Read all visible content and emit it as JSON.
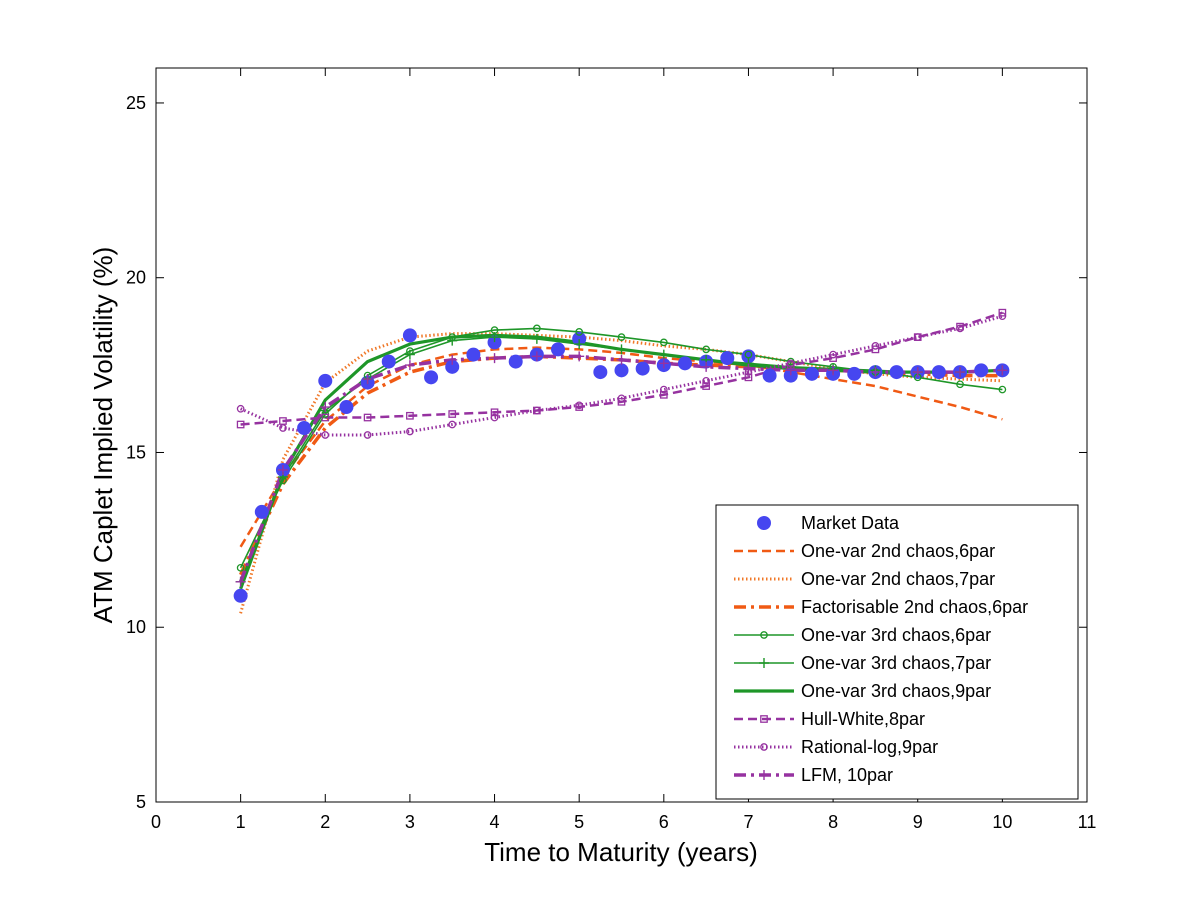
{
  "chart_data": {
    "type": "line",
    "title": "",
    "xlabel": "Time to Maturity (years)",
    "ylabel": "ATM Caplet Implied Volatility (%)",
    "xlim": [
      0,
      11
    ],
    "ylim": [
      5,
      26
    ],
    "xticks": [
      0,
      1,
      2,
      3,
      4,
      5,
      6,
      7,
      8,
      9,
      10,
      11
    ],
    "yticks": [
      5,
      10,
      15,
      20,
      25
    ],
    "grid": false,
    "legend_position": "lower-right",
    "series": [
      {
        "name": "Market Data",
        "color": "#4646f0",
        "style": "markers",
        "marker": "filled-circle",
        "x": [
          1,
          1.25,
          1.5,
          1.75,
          2,
          2.25,
          2.5,
          2.75,
          3,
          3.25,
          3.5,
          3.75,
          4,
          4.25,
          4.5,
          4.75,
          5,
          5.25,
          5.5,
          5.75,
          6,
          6.25,
          6.5,
          6.75,
          7,
          7.25,
          7.5,
          7.75,
          8,
          8.25,
          8.5,
          8.75,
          9,
          9.25,
          9.5,
          9.75,
          10
        ],
        "y": [
          10.9,
          13.3,
          14.5,
          15.7,
          17.05,
          16.3,
          17.0,
          17.6,
          18.35,
          17.15,
          17.45,
          17.8,
          18.15,
          17.6,
          17.8,
          17.95,
          18.25,
          17.3,
          17.35,
          17.4,
          17.5,
          17.55,
          17.6,
          17.7,
          17.75,
          17.2,
          17.2,
          17.25,
          17.25,
          17.25,
          17.3,
          17.3,
          17.3,
          17.3,
          17.3,
          17.35,
          17.35
        ]
      },
      {
        "name": "One-var 2nd chaos,6par",
        "color": "#f05a14",
        "style": "dashed",
        "x": [
          1,
          1.5,
          2,
          2.5,
          3,
          3.5,
          4,
          4.5,
          5,
          5.5,
          6,
          6.5,
          7,
          7.5,
          8,
          8.5,
          9,
          9.5,
          10
        ],
        "y": [
          12.3,
          14.3,
          15.9,
          16.9,
          17.5,
          17.8,
          17.95,
          18.0,
          17.95,
          17.85,
          17.7,
          17.6,
          17.5,
          17.3,
          17.1,
          16.9,
          16.6,
          16.3,
          15.95
        ]
      },
      {
        "name": "One-var 2nd chaos,7par",
        "color": "#f07828",
        "style": "dotted",
        "x": [
          1,
          1.5,
          2,
          2.5,
          3,
          3.5,
          4,
          4.5,
          5,
          5.5,
          6,
          6.5,
          7,
          7.5,
          8,
          8.5,
          9,
          9.5,
          10
        ],
        "y": [
          10.4,
          14.8,
          17.0,
          17.9,
          18.3,
          18.4,
          18.4,
          18.35,
          18.3,
          18.2,
          18.05,
          17.95,
          17.8,
          17.6,
          17.4,
          17.25,
          17.15,
          17.1,
          17.05
        ]
      },
      {
        "name": "Factorisable 2nd chaos,6par",
        "color": "#f05a14",
        "style": "dashdot",
        "x": [
          1,
          1.5,
          2,
          2.5,
          3,
          3.5,
          4,
          4.5,
          5,
          5.5,
          6,
          6.5,
          7,
          7.5,
          8,
          8.5,
          9,
          9.5,
          10
        ],
        "y": [
          11.5,
          14.1,
          15.7,
          16.7,
          17.3,
          17.6,
          17.7,
          17.75,
          17.7,
          17.65,
          17.55,
          17.5,
          17.45,
          17.4,
          17.35,
          17.3,
          17.25,
          17.2,
          17.2
        ]
      },
      {
        "name": "One-var 3rd chaos,6par",
        "color": "#1e9628",
        "style": "solid",
        "marker": "open-circle",
        "x": [
          1,
          1.5,
          2,
          2.5,
          3,
          3.5,
          4,
          4.5,
          5,
          5.5,
          6,
          6.5,
          7,
          7.5,
          8,
          8.5,
          9,
          9.5,
          10
        ],
        "y": [
          11.7,
          14.2,
          16.1,
          17.2,
          17.9,
          18.3,
          18.5,
          18.55,
          18.45,
          18.3,
          18.15,
          17.95,
          17.8,
          17.6,
          17.45,
          17.3,
          17.15,
          16.95,
          16.8
        ]
      },
      {
        "name": "One-var 3rd chaos,7par",
        "color": "#1e9628",
        "style": "solid",
        "marker": "plus",
        "x": [
          1,
          1.5,
          2,
          2.5,
          3,
          3.5,
          4,
          4.5,
          5,
          5.5,
          6,
          6.5,
          7,
          7.5,
          8,
          8.5,
          9,
          9.5,
          10
        ],
        "y": [
          11.3,
          14.3,
          16.2,
          17.1,
          17.8,
          18.2,
          18.3,
          18.25,
          18.1,
          17.95,
          17.8,
          17.65,
          17.55,
          17.45,
          17.4,
          17.35,
          17.3,
          17.3,
          17.35
        ]
      },
      {
        "name": "One-var 3rd chaos,9par",
        "color": "#1e9628",
        "style": "solid-thick",
        "x": [
          1,
          1.5,
          2,
          2.5,
          3,
          3.5,
          4,
          4.5,
          5,
          5.5,
          6,
          6.5,
          7,
          7.5,
          8,
          8.5,
          9,
          9.5,
          10
        ],
        "y": [
          11.1,
          14.4,
          16.5,
          17.6,
          18.1,
          18.3,
          18.35,
          18.3,
          18.15,
          17.95,
          17.8,
          17.65,
          17.5,
          17.4,
          17.35,
          17.3,
          17.3,
          17.3,
          17.35
        ]
      },
      {
        "name": "Hull-White,8par",
        "color": "#9632a0",
        "style": "dashed",
        "marker": "open-square",
        "x": [
          1,
          1.5,
          2,
          2.5,
          3,
          3.5,
          4,
          4.5,
          5,
          5.5,
          6,
          6.5,
          7,
          7.5,
          8,
          8.5,
          9,
          9.5,
          10
        ],
        "y": [
          15.8,
          15.9,
          16.0,
          16.0,
          16.05,
          16.1,
          16.15,
          16.2,
          16.3,
          16.45,
          16.65,
          16.9,
          17.15,
          17.5,
          17.7,
          17.95,
          18.3,
          18.6,
          19.0
        ]
      },
      {
        "name": "Rational-log,9par",
        "color": "#9632a0",
        "style": "dotted",
        "marker": "open-circle",
        "x": [
          1,
          1.5,
          2,
          2.5,
          3,
          3.5,
          4,
          4.5,
          5,
          5.5,
          6,
          6.5,
          7,
          7.5,
          8,
          8.5,
          9,
          9.5,
          10
        ],
        "y": [
          16.25,
          15.7,
          15.5,
          15.5,
          15.6,
          15.8,
          16.0,
          16.2,
          16.35,
          16.55,
          16.8,
          17.05,
          17.3,
          17.55,
          17.8,
          18.05,
          18.3,
          18.55,
          18.9
        ]
      },
      {
        "name": "LFM, 10par",
        "color": "#9632a0",
        "style": "dashdot",
        "marker": "plus",
        "x": [
          1,
          1.5,
          2,
          2.5,
          3,
          3.5,
          4,
          4.5,
          5,
          5.5,
          6,
          6.5,
          7,
          7.5,
          8,
          8.5,
          9,
          9.5,
          10
        ],
        "y": [
          11.3,
          14.5,
          16.3,
          17.1,
          17.5,
          17.65,
          17.7,
          17.75,
          17.75,
          17.65,
          17.55,
          17.45,
          17.4,
          17.35,
          17.35,
          17.3,
          17.3,
          17.3,
          17.35
        ]
      }
    ]
  }
}
